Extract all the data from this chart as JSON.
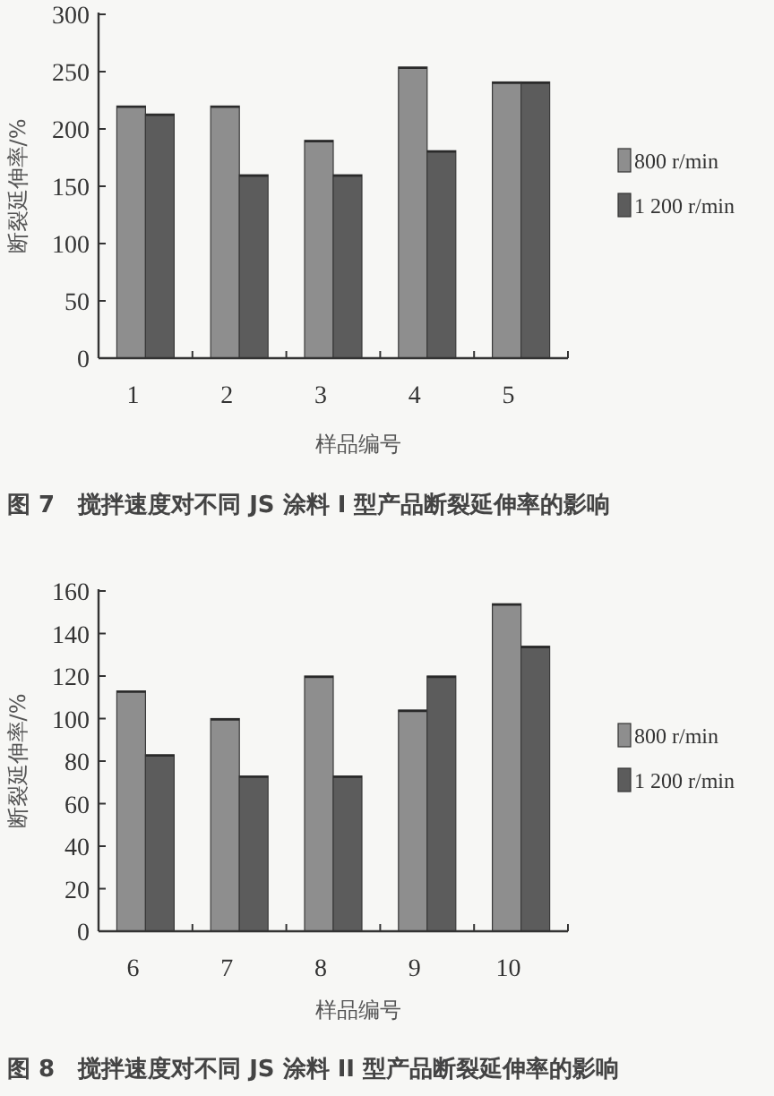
{
  "chart_data": [
    {
      "type": "bar",
      "title": "图 7　搅拌速度对不同 JS 涂料 I 型产品断裂延伸率的影响",
      "xlabel": "样品编号",
      "ylabel": "断裂延伸率/%",
      "categories": [
        "1",
        "2",
        "3",
        "4",
        "5"
      ],
      "ylim": [
        0,
        300
      ],
      "yticks": [
        0,
        50,
        100,
        150,
        200,
        250,
        300
      ],
      "legend": "right",
      "grid": false,
      "series": [
        {
          "name": "800 r/min",
          "color": "#8e8e8e",
          "values": [
            220,
            220,
            190,
            254,
            241
          ]
        },
        {
          "name": "1 200 r/min",
          "color": "#5c5c5c",
          "values": [
            213,
            160,
            160,
            181,
            241
          ]
        }
      ]
    },
    {
      "type": "bar",
      "title": "图 8　搅拌速度对不同 JS 涂料 II 型产品断裂延伸率的影响",
      "xlabel": "样品编号",
      "ylabel": "断裂延伸率/%",
      "categories": [
        "6",
        "7",
        "8",
        "9",
        "10"
      ],
      "ylim": [
        0,
        160
      ],
      "yticks": [
        0,
        20,
        40,
        60,
        80,
        100,
        120,
        140,
        160
      ],
      "legend": "right",
      "grid": false,
      "series": [
        {
          "name": "800 r/min",
          "color": "#8e8e8e",
          "values": [
            113,
            100,
            120,
            104,
            154
          ]
        },
        {
          "name": "1 200 r/min",
          "color": "#5c5c5c",
          "values": [
            83,
            73,
            73,
            120,
            134
          ]
        }
      ]
    }
  ]
}
